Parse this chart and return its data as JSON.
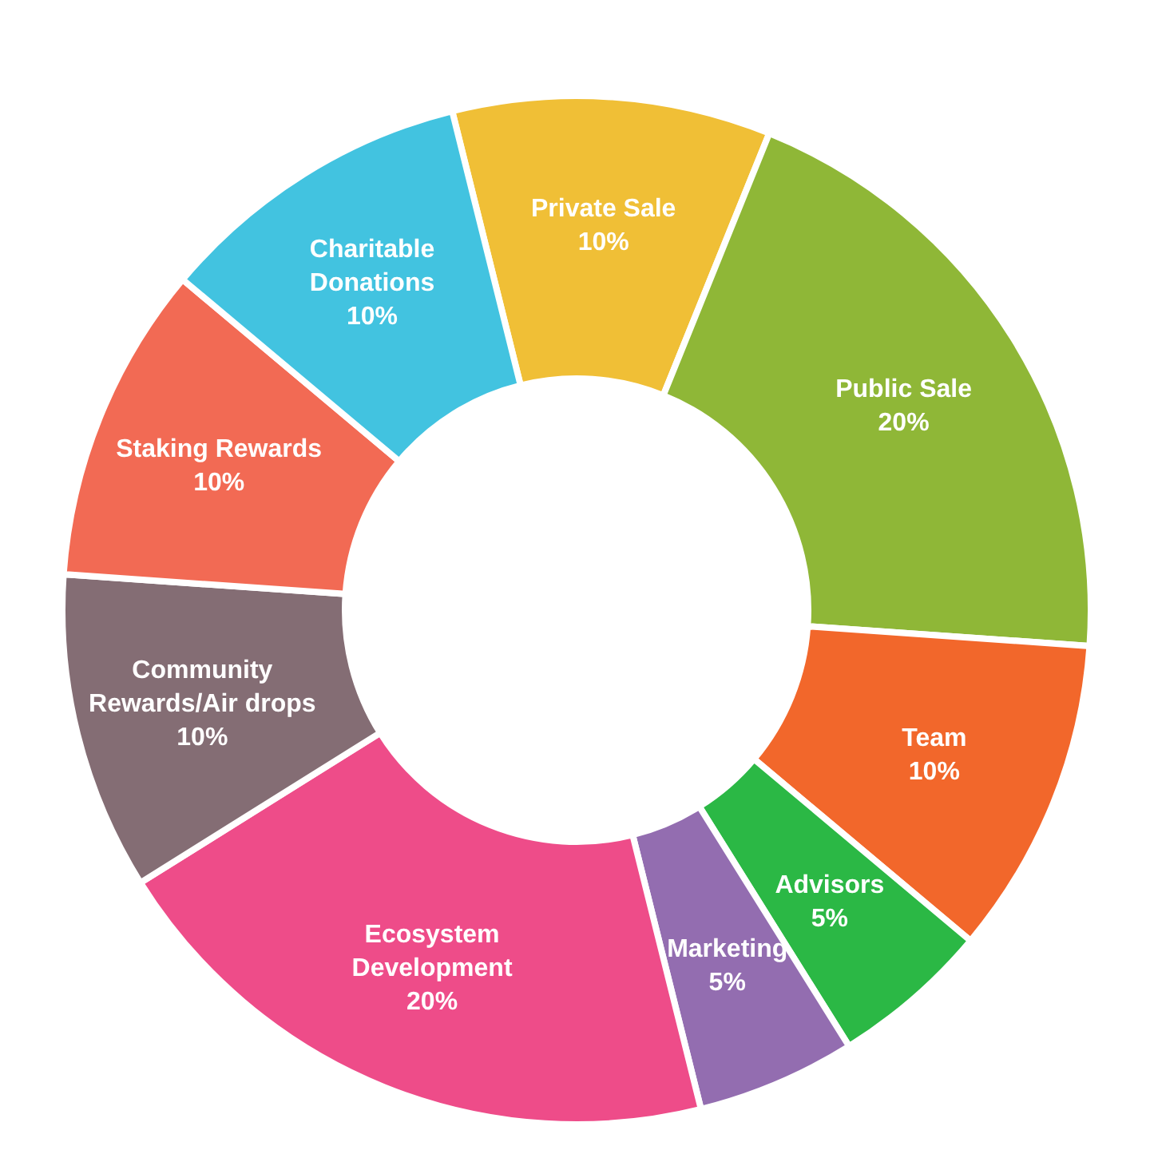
{
  "chart_data": {
    "type": "donut",
    "categories": [
      "Private Sale",
      "Public Sale",
      "Team",
      "Advisors",
      "Marketing",
      "Ecosystem Development",
      "Community Rewards/Air drops",
      "Staking Rewards",
      "Charitable Donations"
    ],
    "values": [
      10,
      20,
      10,
      5,
      5,
      20,
      10,
      10,
      10
    ],
    "colors": [
      "#f0bf36",
      "#8fb737",
      "#f2672b",
      "#2bb845",
      "#936db0",
      "#ee4c89",
      "#846d74",
      "#f26a54",
      "#42c3e0"
    ],
    "value_labels": [
      "10%",
      "20%",
      "10%",
      "5%",
      "5%",
      "20%",
      "10%",
      "10%",
      "10%"
    ]
  }
}
